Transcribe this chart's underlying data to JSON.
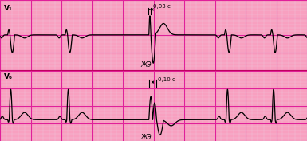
{
  "bg_color": "#F8A0C0",
  "grid_minor_color": "#F0C0D8",
  "grid_major_color": "#E0209A",
  "line_color": "#000000",
  "label_color": "#000000",
  "panel1_label": "V₁",
  "panel2_label": "V₆",
  "annotation1": "ЖЭ",
  "annotation2": "ЖЭ",
  "measure1": "0,03 с",
  "measure2": "0,10 с",
  "figsize": [
    3.85,
    1.77
  ],
  "dpi": 100,
  "border_color": "#C00060"
}
